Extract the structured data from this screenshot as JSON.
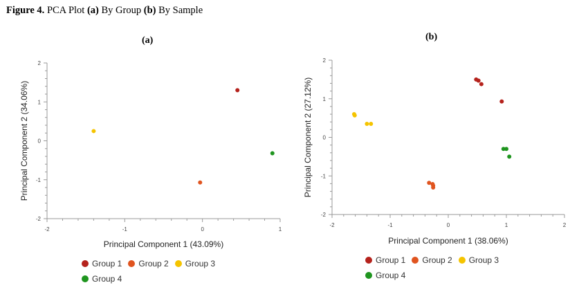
{
  "figure": {
    "number": "Figure 4.",
    "caption_part1": " PCA Plot ",
    "tag_a": "(a)",
    "caption_part2": " By Group ",
    "tag_b": "(b)",
    "caption_part3": " By Sample"
  },
  "chart_data": [
    {
      "type": "scatter",
      "title": "(a)",
      "xlabel": "Principal Component 1 (43.09%)",
      "ylabel": "Principal Component 2 (34.06%)",
      "xlim": [
        -2,
        1
      ],
      "ylim": [
        -2,
        2
      ],
      "xticks": [
        -2,
        -1,
        0,
        1
      ],
      "yticks": [
        -2,
        -1,
        0,
        1,
        2
      ],
      "grid": false,
      "legend_position": "bottom-left",
      "series": [
        {
          "name": "Group 1",
          "color": "#b5221c",
          "points": [
            {
              "x": 0.45,
              "y": 1.3
            }
          ]
        },
        {
          "name": "Group 2",
          "color": "#e0541f",
          "points": [
            {
              "x": -0.03,
              "y": -1.07
            }
          ]
        },
        {
          "name": "Group 3",
          "color": "#f5c400",
          "points": [
            {
              "x": -1.4,
              "y": 0.25
            }
          ]
        },
        {
          "name": "Group 4",
          "color": "#1f951f",
          "points": [
            {
              "x": 0.9,
              "y": -0.32
            }
          ]
        }
      ]
    },
    {
      "type": "scatter",
      "title": "(b)",
      "xlabel": "Principal Component 1 (38.06%)",
      "ylabel": "Principal Component 2 (27.12%)",
      "xlim": [
        -2,
        2
      ],
      "ylim": [
        -2,
        2
      ],
      "xticks": [
        -2,
        -1,
        0,
        1,
        2
      ],
      "yticks": [
        -2,
        -1,
        0,
        1,
        2
      ],
      "grid": false,
      "legend_position": "bottom-left",
      "series": [
        {
          "name": "Group 1",
          "color": "#b5221c",
          "points": [
            {
              "x": 0.48,
              "y": 1.5
            },
            {
              "x": 0.52,
              "y": 1.47
            },
            {
              "x": 0.57,
              "y": 1.38
            },
            {
              "x": 0.92,
              "y": 0.93
            }
          ]
        },
        {
          "name": "Group 2",
          "color": "#e0541f",
          "points": [
            {
              "x": -0.33,
              "y": -1.18
            },
            {
              "x": -0.27,
              "y": -1.21
            },
            {
              "x": -0.26,
              "y": -1.25
            },
            {
              "x": -0.26,
              "y": -1.3
            }
          ]
        },
        {
          "name": "Group 3",
          "color": "#f5c400",
          "points": [
            {
              "x": -1.62,
              "y": 0.6
            },
            {
              "x": -1.61,
              "y": 0.57
            },
            {
              "x": -1.4,
              "y": 0.35
            },
            {
              "x": -1.33,
              "y": 0.35
            }
          ]
        },
        {
          "name": "Group 4",
          "color": "#1f951f",
          "points": [
            {
              "x": 0.95,
              "y": -0.3
            },
            {
              "x": 1.0,
              "y": -0.3
            },
            {
              "x": 1.05,
              "y": -0.5
            }
          ]
        }
      ]
    }
  ]
}
